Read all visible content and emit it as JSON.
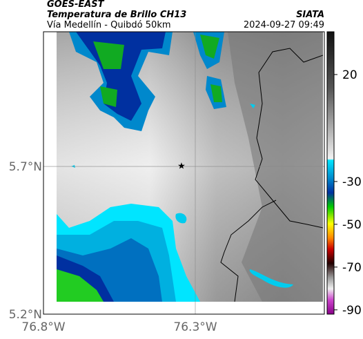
{
  "header": {
    "source": "GOES-EAST",
    "title": "Temperatura de Brillo CH13",
    "subtitle": "Vía Medellín - Quibdó 50km",
    "org": "SIATA",
    "datetime": "2024-09-27 09:49"
  },
  "map": {
    "xlim": [
      -76.8,
      -75.875
    ],
    "ylim": [
      5.2,
      6.156
    ],
    "yticks": [
      {
        "value": 5.7,
        "label": "5.7°N"
      },
      {
        "value": 5.2,
        "label": "5.2°N"
      }
    ],
    "xticks": [
      {
        "value": -76.8,
        "label": "76.8°W"
      },
      {
        "value": -76.3,
        "label": "76.3°W"
      }
    ],
    "grid": true
  },
  "colorbar": {
    "lim": [
      -92,
      40
    ],
    "ticks": [
      20,
      -30,
      -50,
      -70,
      -90
    ]
  }
}
